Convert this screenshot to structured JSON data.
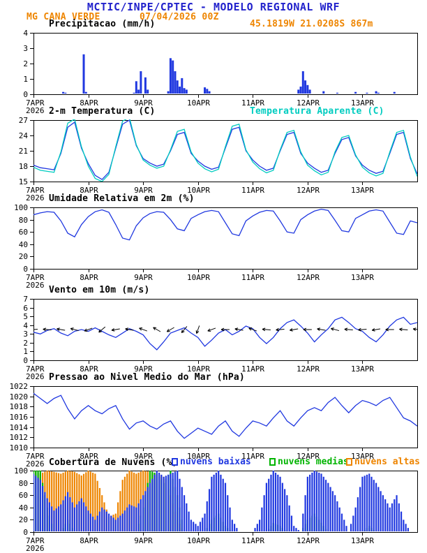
{
  "header": {
    "title": "MCTIC/INPE/CPTEC - MODELO REGIONAL WRF",
    "station": "MG CANA VERDE",
    "run": "07/04/2026 00Z",
    "location": "45.1819W 21.0208S 867m"
  },
  "colors": {
    "header_blue": "#2222cc",
    "orange": "#ee8500",
    "line_blue": "#2038e0",
    "cyan": "#00ccc0",
    "green": "#00b400",
    "black": "#000000"
  },
  "x_axis": {
    "start_hour": 0,
    "end_hour": 168,
    "tick_hours": [
      0,
      24,
      48,
      72,
      96,
      120,
      144
    ],
    "tick_labels": [
      "7APR",
      "8APR",
      "9APR",
      "10APR",
      "11APR",
      "12APR",
      "13APR"
    ],
    "year_label": "2026"
  },
  "chart_data": [
    {
      "type": "bar",
      "render": "precip",
      "title": "Precipitacao (mm/h)",
      "annotation": "45.1819W 21.0208S 867m",
      "ylabel": "mm/h",
      "ylim": [
        0,
        4
      ],
      "yticks": [
        0,
        1,
        2,
        3,
        4
      ],
      "color": "#2038e0",
      "points": [
        [
          13,
          0.15
        ],
        [
          14,
          0.1
        ],
        [
          22,
          2.6
        ],
        [
          23,
          0.15
        ],
        [
          44,
          0.1
        ],
        [
          45,
          0.85
        ],
        [
          46,
          0.3
        ],
        [
          47,
          1.5
        ],
        [
          49,
          1.1
        ],
        [
          50,
          0.3
        ],
        [
          59,
          0.2
        ],
        [
          60,
          2.35
        ],
        [
          61,
          2.2
        ],
        [
          62,
          1.5
        ],
        [
          63,
          0.9
        ],
        [
          64,
          0.5
        ],
        [
          65,
          1.05
        ],
        [
          66,
          0.4
        ],
        [
          67,
          0.3
        ],
        [
          75,
          0.45
        ],
        [
          76,
          0.35
        ],
        [
          77,
          0.2
        ],
        [
          116,
          0.3
        ],
        [
          117,
          0.5
        ],
        [
          118,
          1.5
        ],
        [
          119,
          0.9
        ],
        [
          120,
          0.6
        ],
        [
          121,
          0.3
        ],
        [
          127,
          0.2
        ],
        [
          133,
          0.1
        ],
        [
          141,
          0.15
        ],
        [
          146,
          0.1
        ],
        [
          150,
          0.2
        ],
        [
          151,
          0.1
        ],
        [
          158,
          0.15
        ]
      ]
    },
    {
      "type": "line",
      "render": "lines",
      "title": "2-m Temperatura (C)",
      "ylim": [
        15,
        27
      ],
      "yticks": [
        15,
        18,
        21,
        24,
        27
      ],
      "x_step_hours": 3,
      "series": [
        {
          "name": "2-m Temperatura (C)",
          "color": "#2038e0",
          "values": [
            18.2,
            17.7,
            17.5,
            17.3,
            20.5,
            25.6,
            26.6,
            21.5,
            18.5,
            16.2,
            15.4,
            16.8,
            21.5,
            26.2,
            27.0,
            22.0,
            19.5,
            18.6,
            18.0,
            18.4,
            21.0,
            24.2,
            24.6,
            20.5,
            19.0,
            18.0,
            17.4,
            17.8,
            21.5,
            25.2,
            25.6,
            21.0,
            19.2,
            18.0,
            17.2,
            17.6,
            21.0,
            24.2,
            24.6,
            20.5,
            18.6,
            17.6,
            16.8,
            17.2,
            20.5,
            23.2,
            23.6,
            20.0,
            18.2,
            17.2,
            16.6,
            17.0,
            20.5,
            24.2,
            24.6,
            19.5,
            16.5
          ]
        },
        {
          "name": "Temperatura Aparente (C)",
          "color": "#00ccc0",
          "values": [
            17.8,
            17.2,
            17.0,
            16.8,
            20.8,
            26.4,
            27.2,
            21.8,
            18.0,
            15.6,
            15.0,
            16.4,
            21.8,
            26.8,
            27.5,
            22.2,
            19.2,
            18.2,
            17.6,
            18.0,
            21.2,
            24.8,
            25.2,
            20.8,
            18.6,
            17.5,
            16.9,
            17.4,
            21.8,
            25.8,
            26.2,
            21.2,
            18.8,
            17.5,
            16.7,
            17.2,
            21.2,
            24.6,
            25.0,
            20.8,
            18.2,
            17.1,
            16.3,
            16.8,
            20.8,
            23.6,
            24.0,
            20.2,
            17.8,
            16.7,
            16.1,
            16.6,
            20.8,
            24.6,
            25.0,
            19.8,
            16.0
          ]
        }
      ]
    },
    {
      "type": "line",
      "render": "lines",
      "title": "Umidade Relativa em 2m (%)",
      "ylim": [
        0,
        100
      ],
      "yticks": [
        0,
        20,
        40,
        60,
        80,
        100
      ],
      "x_step_hours": 3,
      "series": [
        {
          "name": "Umidade Relativa em 2m (%)",
          "color": "#2038e0",
          "values": [
            88,
            91,
            93,
            92,
            78,
            58,
            52,
            72,
            85,
            93,
            96,
            92,
            72,
            50,
            47,
            70,
            83,
            90,
            93,
            92,
            80,
            65,
            62,
            82,
            88,
            93,
            95,
            93,
            75,
            57,
            54,
            78,
            86,
            92,
            95,
            94,
            78,
            60,
            58,
            80,
            88,
            94,
            97,
            95,
            79,
            62,
            60,
            82,
            88,
            94,
            96,
            94,
            76,
            58,
            56,
            78,
            75
          ]
        }
      ]
    },
    {
      "type": "line",
      "render": "wind",
      "title": "Vento em 10m (m/s)",
      "ylim": [
        0,
        7
      ],
      "yticks": [
        0,
        1,
        2,
        3,
        4,
        5,
        6,
        7
      ],
      "x_step_hours": 3,
      "barb_step_hours": 6,
      "barb_level": 3.5,
      "barb_dirs_deg": [
        185,
        175,
        170,
        165,
        200,
        220,
        190,
        170,
        160,
        150,
        210,
        230,
        250,
        200,
        180,
        170,
        160,
        175,
        185,
        190,
        180,
        170,
        165,
        175,
        185,
        190,
        180,
        175,
        170
      ],
      "series": [
        {
          "name": "Vento em 10m (m/s)",
          "color": "#2038e0",
          "values": [
            3.2,
            3.0,
            3.4,
            3.6,
            3.1,
            2.8,
            3.3,
            3.5,
            3.3,
            3.7,
            3.3,
            2.9,
            2.6,
            3.1,
            3.6,
            3.3,
            2.9,
            1.9,
            1.2,
            2.1,
            3.1,
            3.4,
            3.7,
            3.1,
            2.6,
            1.6,
            2.3,
            3.1,
            3.5,
            2.9,
            3.3,
            3.9,
            3.6,
            2.6,
            1.9,
            2.6,
            3.6,
            4.3,
            4.6,
            3.9,
            3.1,
            2.1,
            2.9,
            3.6,
            4.6,
            4.9,
            4.3,
            3.6,
            3.3,
            2.6,
            2.1,
            2.9,
            3.9,
            4.6,
            4.9,
            4.1,
            4.3
          ]
        }
      ]
    },
    {
      "type": "line",
      "render": "lines",
      "title": "Pressao ao Nivel Medio do Mar (hPa)",
      "ylim": [
        1010,
        1022
      ],
      "yticks": [
        1010,
        1012,
        1014,
        1016,
        1018,
        1020,
        1022
      ],
      "x_step_hours": 3,
      "series": [
        {
          "name": "Pressao ao Nivel Medio do Mar (hPa)",
          "color": "#2038e0",
          "values": [
            1020.6,
            1019.6,
            1018.6,
            1019.6,
            1020.2,
            1017.6,
            1015.6,
            1017.2,
            1018.2,
            1017.2,
            1016.6,
            1017.6,
            1018.2,
            1015.6,
            1013.6,
            1014.8,
            1015.2,
            1014.2,
            1013.6,
            1014.6,
            1015.2,
            1013.2,
            1011.8,
            1012.8,
            1013.8,
            1013.2,
            1012.6,
            1014.2,
            1015.2,
            1013.2,
            1012.2,
            1013.8,
            1015.2,
            1014.8,
            1014.2,
            1015.8,
            1017.2,
            1015.2,
            1014.2,
            1015.8,
            1017.2,
            1017.8,
            1017.2,
            1018.8,
            1019.8,
            1018.2,
            1016.8,
            1018.2,
            1019.2,
            1018.8,
            1018.2,
            1019.2,
            1019.8,
            1017.8,
            1015.8,
            1015.2,
            1014.2
          ]
        }
      ]
    },
    {
      "type": "bar",
      "render": "cloud",
      "title": "Cobertura de Nuvens (%)",
      "ylim": [
        0,
        100
      ],
      "yticks": [
        0,
        20,
        40,
        60,
        80,
        100
      ],
      "x_step_hours": 3,
      "series": [
        {
          "name": "nuvens baixas",
          "color": "#2038e0",
          "values": [
            95,
            85,
            55,
            35,
            45,
            65,
            40,
            55,
            35,
            20,
            40,
            30,
            20,
            30,
            45,
            40,
            60,
            80,
            100,
            90,
            95,
            100,
            60,
            20,
            10,
            30,
            90,
            100,
            80,
            20,
            0,
            0,
            0,
            20,
            80,
            100,
            90,
            60,
            10,
            0,
            90,
            100,
            95,
            80,
            60,
            30,
            0,
            40,
            90,
            95,
            80,
            60,
            40,
            60,
            20,
            0,
            0
          ]
        },
        {
          "name": "nuvens medias",
          "color": "#00b400",
          "values": [
            100,
            100,
            40,
            0,
            0,
            20,
            0,
            0,
            0,
            0,
            0,
            0,
            0,
            0,
            0,
            0,
            40,
            100,
            95,
            80,
            100,
            60,
            0,
            0,
            0,
            0,
            20,
            30,
            10,
            0,
            0,
            0,
            0,
            0,
            0,
            15,
            10,
            0,
            0,
            0,
            20,
            30,
            15,
            0,
            0,
            0,
            0,
            0,
            0,
            10,
            0,
            0,
            0,
            0,
            0,
            0,
            0
          ]
        },
        {
          "name": "nuvens altas",
          "color": "#ee8500",
          "values": [
            100,
            95,
            100,
            98,
            95,
            100,
            98,
            92,
            100,
            95,
            60,
            25,
            30,
            85,
            100,
            95,
            100,
            98,
            95,
            90,
            60,
            20,
            0,
            0,
            0,
            0,
            0,
            0,
            0,
            0,
            0,
            0,
            0,
            0,
            0,
            0,
            0,
            0,
            0,
            0,
            0,
            0,
            0,
            0,
            0,
            0,
            0,
            0,
            0,
            0,
            0,
            0,
            0,
            0,
            0,
            0,
            0
          ]
        }
      ]
    }
  ]
}
